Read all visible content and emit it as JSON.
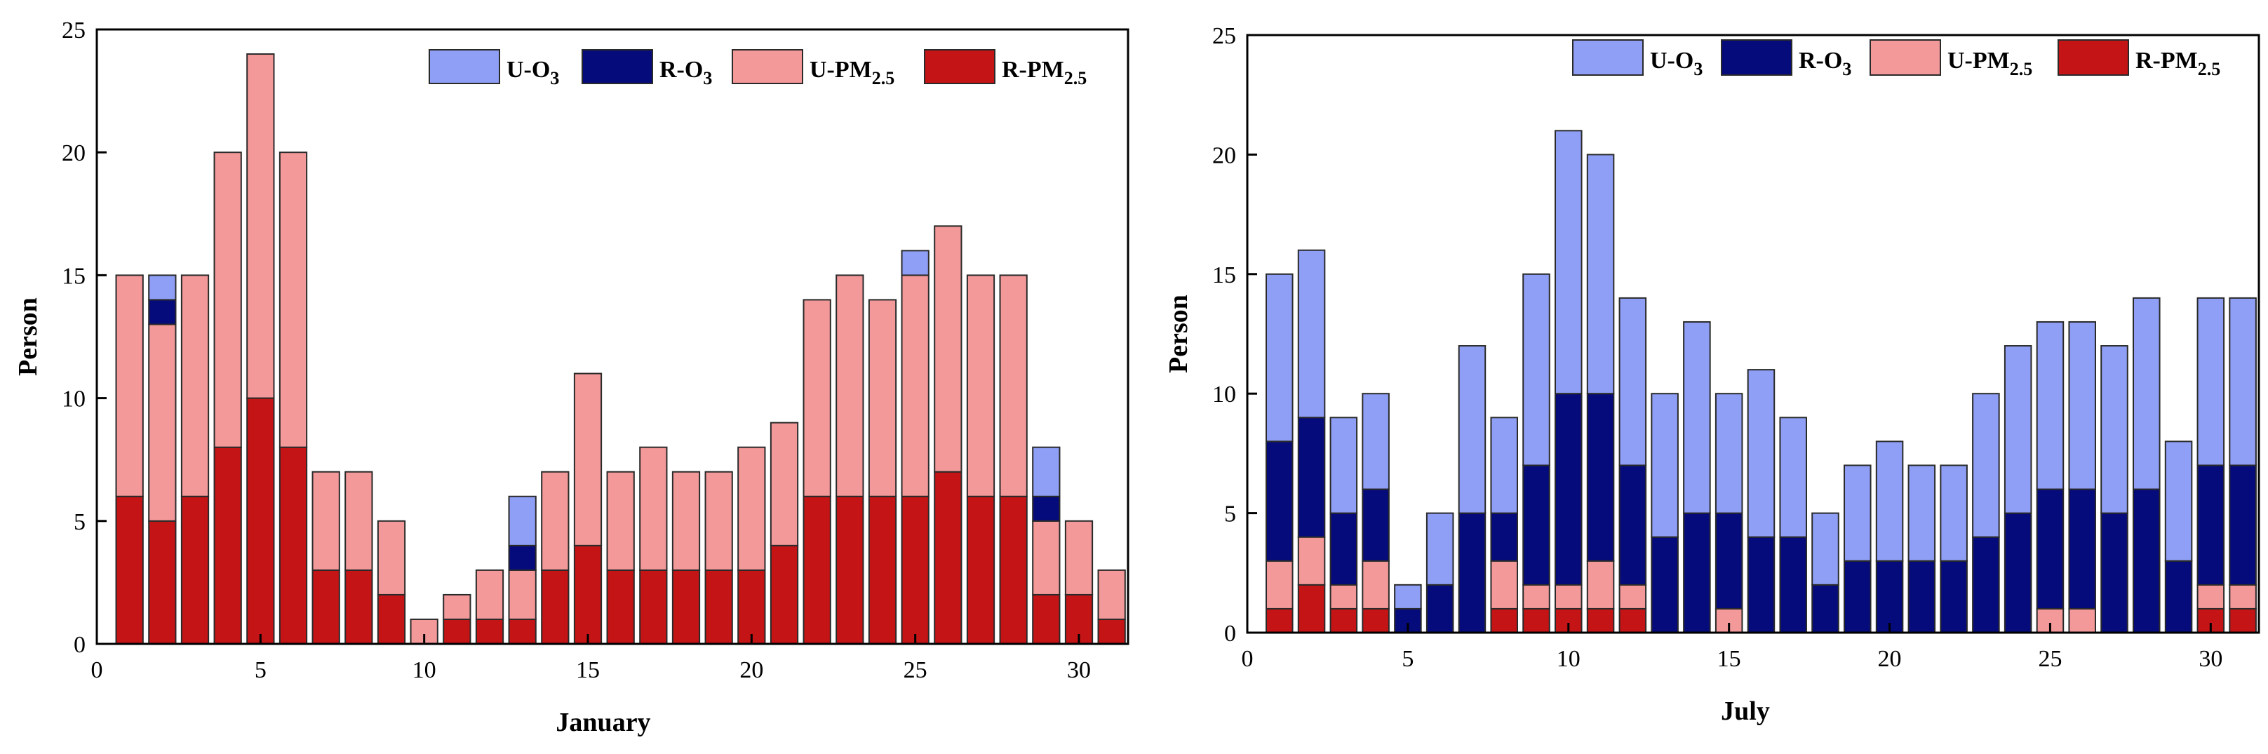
{
  "colors": {
    "U-O3": "#8f9ff5",
    "R-O3": "#050b7a",
    "U-PM2.5": "#f4999a",
    "R-PM2.5": "#c51416",
    "bar_edge": "#2a2a2a"
  },
  "chart_data": [
    {
      "type": "bar",
      "stacked": true,
      "title": "",
      "xlabel": "January",
      "ylabel": "Person",
      "xlim": [
        0,
        31.5
      ],
      "ylim": [
        0,
        25
      ],
      "xticks": [
        0,
        5,
        10,
        15,
        20,
        25,
        30
      ],
      "yticks": [
        0,
        5,
        10,
        15,
        20,
        25
      ],
      "grid": false,
      "legend_position": "top-right",
      "legend": [
        {
          "key": "U-O3",
          "base": "U-O",
          "sub": "3"
        },
        {
          "key": "R-O3",
          "base": "R-O",
          "sub": "3"
        },
        {
          "key": "U-PM2.5",
          "base": "U-PM",
          "sub": "2.5"
        },
        {
          "key": "R-PM2.5",
          "base": "R-PM",
          "sub": "2.5"
        }
      ],
      "stack_order": [
        "R-PM2.5",
        "U-PM2.5",
        "R-O3",
        "U-O3"
      ],
      "x": [
        1,
        2,
        3,
        4,
        5,
        6,
        7,
        8,
        9,
        10,
        11,
        12,
        13,
        14,
        15,
        16,
        17,
        18,
        19,
        20,
        21,
        22,
        23,
        24,
        25,
        26,
        27,
        28,
        29,
        30,
        31
      ],
      "series": [
        {
          "name": "R-PM2.5",
          "values": [
            6,
            5,
            6,
            8,
            10,
            8,
            3,
            3,
            2,
            0,
            1,
            1,
            1,
            3,
            4,
            3,
            3,
            3,
            3,
            3,
            4,
            6,
            6,
            6,
            6,
            7,
            6,
            6,
            2,
            2,
            1
          ]
        },
        {
          "name": "U-PM2.5",
          "values": [
            9,
            8,
            9,
            12,
            14,
            12,
            4,
            4,
            3,
            1,
            1,
            2,
            2,
            4,
            7,
            4,
            5,
            4,
            4,
            5,
            5,
            8,
            9,
            8,
            9,
            10,
            9,
            9,
            3,
            3,
            2
          ]
        },
        {
          "name": "R-O3",
          "values": [
            0,
            1,
            0,
            0,
            0,
            0,
            0,
            0,
            0,
            0,
            0,
            0,
            1,
            0,
            0,
            0,
            0,
            0,
            0,
            0,
            0,
            0,
            0,
            0,
            0,
            0,
            0,
            0,
            1,
            0,
            0
          ]
        },
        {
          "name": "U-O3",
          "values": [
            0,
            1,
            0,
            0,
            0,
            0,
            0,
            0,
            0,
            0,
            0,
            0,
            2,
            0,
            0,
            0,
            0,
            0,
            0,
            0,
            0,
            0,
            0,
            0,
            1,
            0,
            0,
            0,
            2,
            0,
            0
          ]
        }
      ]
    },
    {
      "type": "bar",
      "stacked": true,
      "title": "",
      "xlabel": "July",
      "ylabel": "Person",
      "xlim": [
        0,
        31.5
      ],
      "ylim": [
        0,
        25
      ],
      "xticks": [
        0,
        5,
        10,
        15,
        20,
        25,
        30
      ],
      "yticks": [
        0,
        5,
        10,
        15,
        20,
        25
      ],
      "grid": false,
      "legend_position": "top-right",
      "legend": [
        {
          "key": "U-O3",
          "base": "U-O",
          "sub": "3"
        },
        {
          "key": "R-O3",
          "base": "R-O",
          "sub": "3"
        },
        {
          "key": "U-PM2.5",
          "base": "U-PM",
          "sub": "2.5"
        },
        {
          "key": "R-PM2.5",
          "base": "R-PM",
          "sub": "2.5"
        }
      ],
      "stack_order": [
        "R-PM2.5",
        "U-PM2.5",
        "R-O3",
        "U-O3"
      ],
      "x": [
        1,
        2,
        3,
        4,
        5,
        6,
        7,
        8,
        9,
        10,
        11,
        12,
        13,
        14,
        15,
        16,
        17,
        18,
        19,
        20,
        21,
        22,
        23,
        24,
        25,
        26,
        27,
        28,
        29,
        30,
        31
      ],
      "series": [
        {
          "name": "R-PM2.5",
          "values": [
            1,
            2,
            1,
            1,
            0,
            0,
            0,
            1,
            1,
            1,
            1,
            1,
            0,
            0,
            0,
            0,
            0,
            0,
            0,
            0,
            0,
            0,
            0,
            0,
            0,
            0,
            0,
            0,
            0,
            1,
            1
          ]
        },
        {
          "name": "U-PM2.5",
          "values": [
            2,
            2,
            1,
            2,
            0,
            0,
            0,
            2,
            1,
            1,
            2,
            1,
            0,
            0,
            1,
            0,
            0,
            0,
            0,
            0,
            0,
            0,
            0,
            0,
            1,
            1,
            0,
            0,
            0,
            1,
            1
          ]
        },
        {
          "name": "R-O3",
          "values": [
            5,
            5,
            3,
            3,
            1,
            2,
            5,
            2,
            5,
            8,
            7,
            5,
            4,
            5,
            4,
            4,
            4,
            2,
            3,
            3,
            3,
            3,
            4,
            5,
            5,
            5,
            5,
            6,
            3,
            5,
            5
          ]
        },
        {
          "name": "U-O3",
          "values": [
            7,
            7,
            4,
            4,
            1,
            3,
            7,
            4,
            8,
            11,
            10,
            7,
            6,
            8,
            5,
            7,
            5,
            3,
            4,
            5,
            4,
            4,
            6,
            7,
            7,
            7,
            7,
            8,
            5,
            7,
            7
          ]
        }
      ]
    }
  ]
}
